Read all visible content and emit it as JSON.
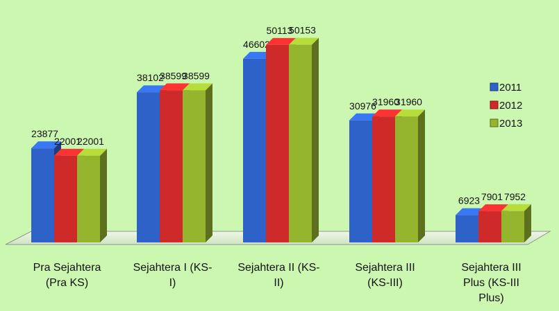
{
  "chart_data": {
    "type": "bar",
    "title": "",
    "xlabel": "",
    "ylabel": "",
    "ylim": [
      0,
      58000
    ],
    "grid": false,
    "legend_position": "right",
    "categories": [
      [
        "Pra Sejahtera",
        "(Pra KS)"
      ],
      [
        "Sejahtera I (KS-",
        "I)"
      ],
      [
        "Sejahtera II (KS-",
        "II)"
      ],
      [
        "Sejahtera III",
        "(KS-III)"
      ],
      [
        "Sejahtera III",
        "Plus (KS-III",
        "Plus)"
      ]
    ],
    "series": [
      {
        "name": "2011",
        "color": "#2f62c9",
        "values": [
          23877,
          38102,
          46602,
          30976,
          6923
        ]
      },
      {
        "name": "2012",
        "color": "#cf2a2a",
        "values": [
          22001,
          38599,
          50113,
          31960,
          7901
        ]
      },
      {
        "name": "2013",
        "color": "#95b52f",
        "values": [
          22001,
          38599,
          50153,
          31960,
          7952
        ]
      }
    ]
  }
}
